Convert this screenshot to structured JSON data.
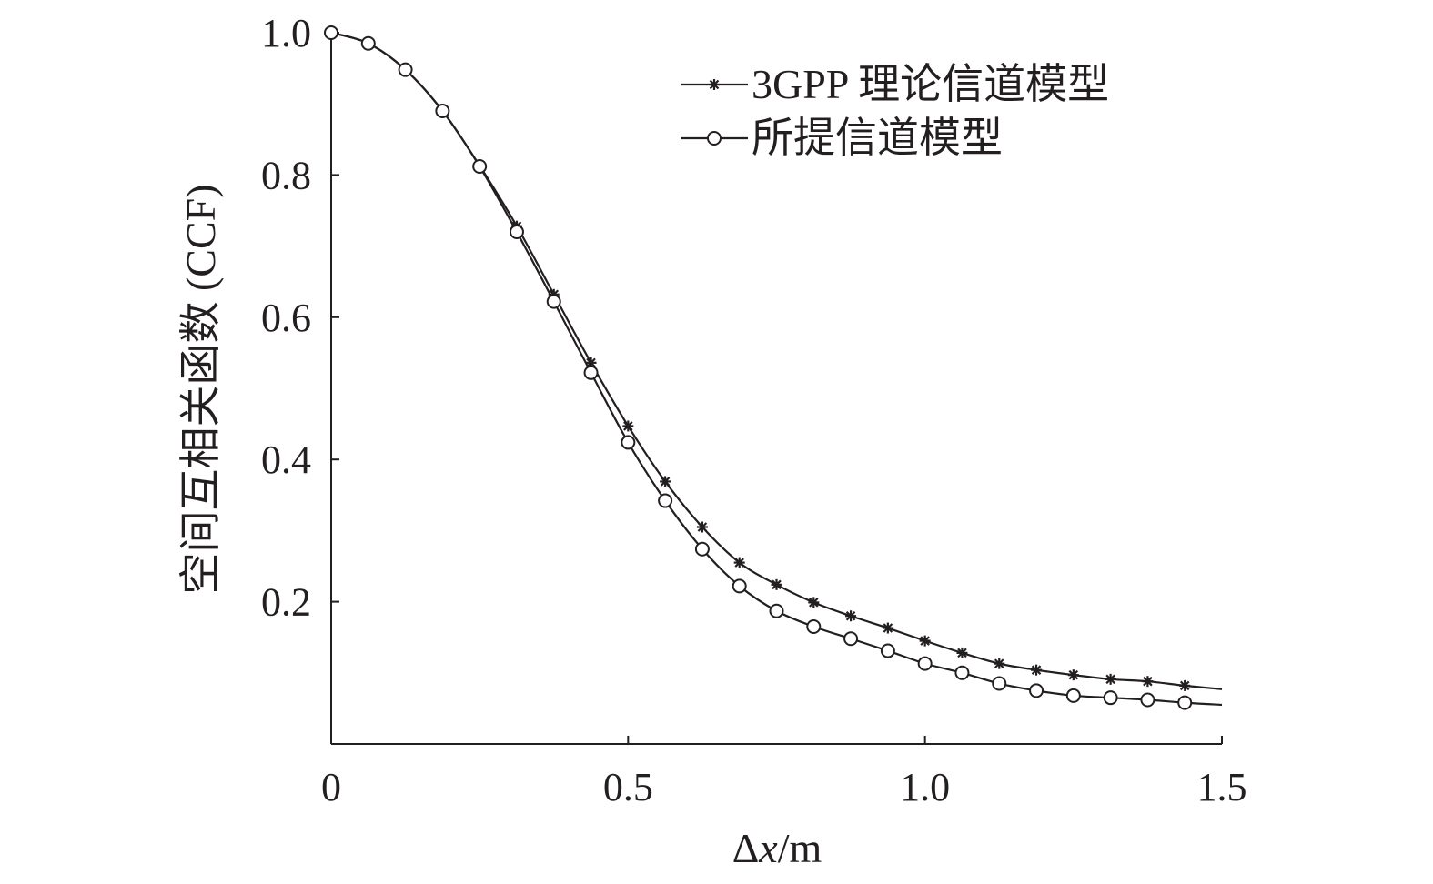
{
  "chart_data": {
    "type": "line",
    "title": "",
    "xlabel": "Δx/m",
    "xlabel_parts": {
      "symbol": "Δ",
      "var": "x",
      "unit": "/m"
    },
    "ylabel": "空间互相关函数 (CCF)",
    "xlim": [
      0,
      1.5
    ],
    "ylim": [
      0,
      1.0
    ],
    "xticks": [
      0,
      0.5,
      1.0,
      1.5
    ],
    "xtick_labels": [
      "0",
      "0.5",
      "1.0",
      "1.5"
    ],
    "yticks": [
      0.2,
      0.4,
      0.6,
      0.8,
      1.0
    ],
    "ytick_labels": [
      "0.2",
      "0.4",
      "0.6",
      "0.8",
      "1.0"
    ],
    "grid": false,
    "legend_position": "top-right",
    "series": [
      {
        "name": "3GPP 理论信道模型",
        "marker": "star",
        "x": [
          0,
          0.0625,
          0.125,
          0.1875,
          0.25,
          0.3125,
          0.375,
          0.4375,
          0.5,
          0.5625,
          0.625,
          0.6875,
          0.75,
          0.8125,
          0.875,
          0.9375,
          1.0,
          1.0625,
          1.125,
          1.1875,
          1.25,
          1.3125,
          1.375,
          1.4375
        ],
        "y": [
          1.0,
          0.985,
          0.948,
          0.89,
          0.813,
          0.728,
          0.632,
          0.536,
          0.447,
          0.369,
          0.305,
          0.255,
          0.224,
          0.199,
          0.18,
          0.163,
          0.145,
          0.128,
          0.113,
          0.104,
          0.097,
          0.091,
          0.088,
          0.082
        ],
        "line_end": [
          1.5,
          0.077
        ]
      },
      {
        "name": "所提信道模型",
        "marker": "circle",
        "x": [
          0,
          0.0625,
          0.125,
          0.1875,
          0.25,
          0.3125,
          0.375,
          0.4375,
          0.5,
          0.5625,
          0.625,
          0.6875,
          0.75,
          0.8125,
          0.875,
          0.9375,
          1.0,
          1.0625,
          1.125,
          1.1875,
          1.25,
          1.3125,
          1.375,
          1.4375
        ],
        "y": [
          1.0,
          0.985,
          0.948,
          0.89,
          0.812,
          0.72,
          0.622,
          0.522,
          0.424,
          0.342,
          0.274,
          0.222,
          0.187,
          0.165,
          0.148,
          0.131,
          0.113,
          0.1,
          0.085,
          0.075,
          0.068,
          0.065,
          0.062,
          0.058
        ],
        "line_end": [
          1.5,
          0.055
        ]
      }
    ]
  }
}
